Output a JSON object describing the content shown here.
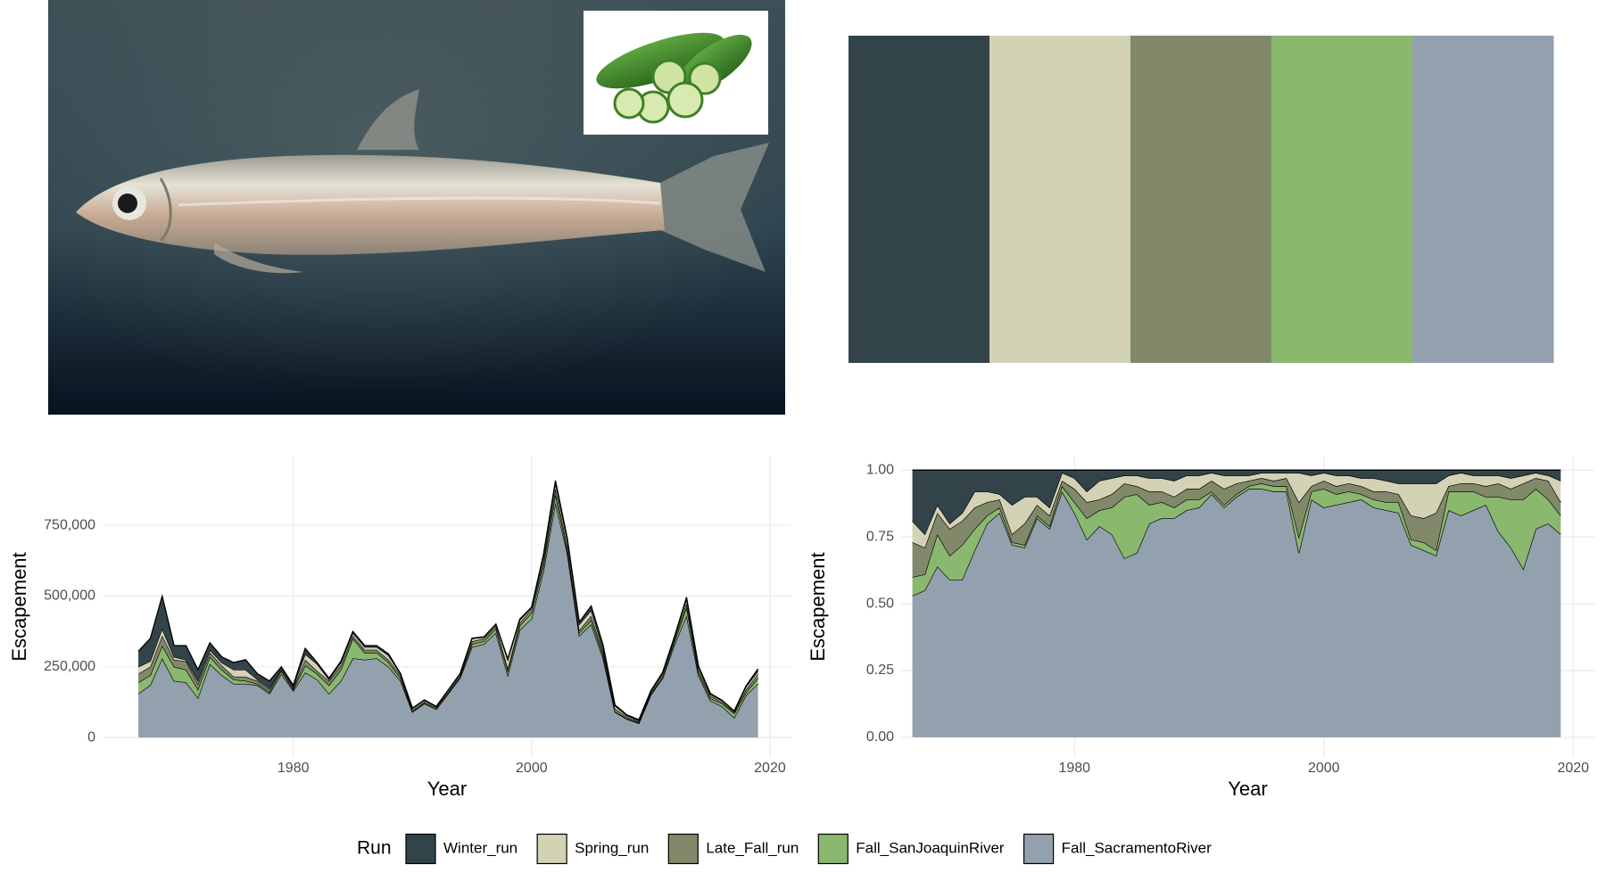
{
  "chart_data": [
    {
      "type": "area",
      "xlabel": "Year",
      "ylabel": "Escapement",
      "x": [
        1967,
        1968,
        1969,
        1970,
        1971,
        1972,
        1973,
        1974,
        1975,
        1976,
        1977,
        1978,
        1979,
        1980,
        1981,
        1982,
        1983,
        1984,
        1985,
        1986,
        1987,
        1988,
        1989,
        1990,
        1991,
        1992,
        1993,
        1994,
        1995,
        1996,
        1997,
        1998,
        1999,
        2000,
        2001,
        2002,
        2003,
        2004,
        2005,
        2006,
        2007,
        2008,
        2009,
        2010,
        2011,
        2012,
        2013,
        2014,
        2015,
        2016,
        2017,
        2018,
        2019
      ],
      "xlim": [
        1964,
        2021.8
      ],
      "xticks": [
        1980,
        2000,
        2020
      ],
      "ylim": [
        -72000,
        996000
      ],
      "yticks": [
        0,
        {
          "value": 250000,
          "label": "250,000"
        },
        {
          "value": 500000,
          "label": "500,000"
        },
        {
          "value": 750000,
          "label": "750,000"
        }
      ],
      "grid": true,
      "series": [
        {
          "name": "Winter_run",
          "color": "#33434a",
          "values": [
            55000,
            80000,
            115000,
            40000,
            50000,
            40000,
            25000,
            20000,
            25000,
            35000,
            20000,
            25000,
            5000,
            5000,
            20000,
            5000,
            5000,
            5000,
            5000,
            5000,
            5000,
            5000,
            1000,
            1000,
            1000,
            1000,
            1000,
            1000,
            1000,
            1000,
            1000,
            3000,
            3000,
            1000,
            8000,
            8000,
            8000,
            8000,
            15000,
            17000,
            3000,
            3000,
            5000,
            2000,
            1000,
            3000,
            6000,
            3000,
            3000,
            1000,
            1000,
            3000,
            8000
          ]
        },
        {
          "name": "Spring_run",
          "color": "#d3d2b4",
          "values": [
            25000,
            20000,
            25000,
            10000,
            5000,
            10000,
            10000,
            10000,
            25000,
            25000,
            5000,
            5000,
            5000,
            5000,
            20000,
            25000,
            5000,
            10000,
            10000,
            10000,
            10000,
            15000,
            5000,
            5000,
            5000,
            3000,
            5000,
            5000,
            10000,
            5000,
            5000,
            30000,
            10000,
            5000,
            15000,
            20000,
            20000,
            20000,
            20000,
            10000,
            10000,
            5000,
            3000,
            5000,
            5000,
            5000,
            15000,
            10000,
            5000,
            5000,
            3000,
            10000,
            10000
          ]
        },
        {
          "name": "Late_Fall_run",
          "color": "#82896b",
          "values": [
            30000,
            30000,
            35000,
            25000,
            30000,
            20000,
            15000,
            15000,
            10000,
            15000,
            10000,
            10000,
            5000,
            5000,
            20000,
            10000,
            15000,
            15000,
            10000,
            10000,
            10000,
            10000,
            10000,
            5000,
            5000,
            5000,
            5000,
            5000,
            10000,
            10000,
            10000,
            10000,
            10000,
            15000,
            15000,
            20000,
            15000,
            10000,
            15000,
            10000,
            10000,
            5000,
            3000,
            5000,
            10000,
            10000,
            15000,
            10000,
            10000,
            5000,
            5000,
            10000,
            15000
          ]
        },
        {
          "name": "Fall_SanJoaquinRiver",
          "color": "#8ab86f",
          "values": [
            40000,
            35000,
            45000,
            50000,
            45000,
            30000,
            25000,
            20000,
            15000,
            10000,
            5000,
            5000,
            10000,
            5000,
            25000,
            20000,
            30000,
            40000,
            70000,
            25000,
            20000,
            15000,
            10000,
            3000,
            2000,
            1000,
            2000,
            5000,
            10000,
            10000,
            15000,
            15000,
            15000,
            20000,
            20000,
            30000,
            10000,
            10000,
            15000,
            10000,
            2000,
            2000,
            2000,
            3000,
            5000,
            10000,
            30000,
            10000,
            8000,
            10000,
            15000,
            10000,
            20000
          ]
        },
        {
          "name": "Fall_SacramentoRiver",
          "color": "#93a1ae",
          "values": [
            155000,
            185000,
            280000,
            200000,
            195000,
            140000,
            260000,
            220000,
            190000,
            190000,
            185000,
            155000,
            225000,
            165000,
            230000,
            205000,
            155000,
            200000,
            280000,
            275000,
            280000,
            250000,
            200000,
            90000,
            120000,
            100000,
            155000,
            210000,
            320000,
            330000,
            370000,
            220000,
            380000,
            420000,
            590000,
            830000,
            650000,
            360000,
            400000,
            280000,
            90000,
            65000,
            50000,
            150000,
            210000,
            330000,
            430000,
            220000,
            130000,
            110000,
            70000,
            150000,
            190000
          ]
        }
      ]
    },
    {
      "type": "area",
      "xlabel": "Year",
      "ylabel": "Escapement",
      "x": [
        1967,
        1968,
        1969,
        1970,
        1971,
        1972,
        1973,
        1974,
        1975,
        1976,
        1977,
        1978,
        1979,
        1980,
        1981,
        1982,
        1983,
        1984,
        1985,
        1986,
        1987,
        1988,
        1989,
        1990,
        1991,
        1992,
        1993,
        1994,
        1995,
        1996,
        1997,
        1998,
        1999,
        2000,
        2001,
        2002,
        2003,
        2004,
        2005,
        2006,
        2007,
        2008,
        2009,
        2010,
        2011,
        2012,
        2013,
        2014,
        2015,
        2016,
        2017,
        2018,
        2019
      ],
      "xlim": [
        1966.1,
        2021.7
      ],
      "xticks": [
        1980,
        2000,
        2020
      ],
      "ylim": [
        -0.077,
        1.054
      ],
      "yticks": [
        {
          "value": 0,
          "label": "0.00"
        },
        {
          "value": 0.25,
          "label": "0.25"
        },
        {
          "value": 0.5,
          "label": "0.50"
        },
        {
          "value": 0.75,
          "label": "0.75"
        },
        {
          "value": 1,
          "label": "1.00"
        }
      ],
      "grid": true,
      "series": [
        {
          "color": "#33434a",
          "values": [
            0.19,
            0.24,
            0.13,
            0.2,
            0.16,
            0.08,
            0.08,
            0.09,
            0.13,
            0.1,
            0.1,
            0.14,
            0.01,
            0.03,
            0.08,
            0.04,
            0.03,
            0.02,
            0.02,
            0.03,
            0.03,
            0.04,
            0.02,
            0.02,
            0.01,
            0.02,
            0.02,
            0.02,
            0.01,
            0.01,
            0.01,
            0.01,
            0.02,
            0.01,
            0.02,
            0.02,
            0.03,
            0.03,
            0.04,
            0.05,
            0.05,
            0.05,
            0.05,
            0.02,
            0.01,
            0.02,
            0.02,
            0.02,
            0.03,
            0.02,
            0.01,
            0.02,
            0.04
          ]
        },
        {
          "color": "#d3d2b4",
          "values": [
            0.08,
            0.05,
            0.03,
            0.02,
            0.03,
            0.06,
            0.04,
            0.02,
            0.11,
            0.1,
            0.03,
            0.03,
            0.03,
            0.04,
            0.04,
            0.07,
            0.06,
            0.03,
            0.04,
            0.05,
            0.05,
            0.06,
            0.05,
            0.05,
            0.03,
            0.05,
            0.03,
            0.02,
            0.02,
            0.03,
            0.02,
            0.11,
            0.04,
            0.03,
            0.04,
            0.03,
            0.03,
            0.05,
            0.04,
            0.04,
            0.12,
            0.13,
            0.11,
            0.04,
            0.04,
            0.03,
            0.04,
            0.03,
            0.04,
            0.03,
            0.02,
            0.02,
            0.08
          ]
        },
        {
          "color": "#82896b",
          "values": [
            0.13,
            0.1,
            0.08,
            0.1,
            0.09,
            0.08,
            0.05,
            0.03,
            0.03,
            0.08,
            0.04,
            0.04,
            0.02,
            0.05,
            0.06,
            0.04,
            0.05,
            0.05,
            0.03,
            0.05,
            0.04,
            0.04,
            0.04,
            0.04,
            0.04,
            0.06,
            0.04,
            0.02,
            0.02,
            0.02,
            0.03,
            0.13,
            0.02,
            0.03,
            0.03,
            0.03,
            0.03,
            0.03,
            0.04,
            0.03,
            0.09,
            0.09,
            0.14,
            0.02,
            0.03,
            0.03,
            0.04,
            0.05,
            0.04,
            0.06,
            0.04,
            0.07,
            0.05
          ]
        },
        {
          "color": "#8ab86f",
          "values": [
            0.07,
            0.06,
            0.12,
            0.09,
            0.13,
            0.08,
            0.03,
            0.02,
            0.01,
            0.01,
            0.01,
            0.01,
            0.02,
            0.04,
            0.08,
            0.06,
            0.1,
            0.23,
            0.22,
            0.07,
            0.06,
            0.04,
            0.04,
            0.03,
            0.01,
            0.01,
            0.01,
            0.01,
            0.02,
            0.02,
            0.02,
            0.06,
            0.03,
            0.07,
            0.04,
            0.04,
            0.02,
            0.03,
            0.03,
            0.04,
            0.02,
            0.03,
            0.02,
            0.07,
            0.09,
            0.07,
            0.03,
            0.13,
            0.18,
            0.26,
            0.15,
            0.09,
            0.07
          ]
        },
        {
          "color": "#93a1ae",
          "values": [
            0.53,
            0.55,
            0.64,
            0.59,
            0.59,
            0.7,
            0.8,
            0.84,
            0.72,
            0.71,
            0.82,
            0.78,
            0.92,
            0.84,
            0.74,
            0.79,
            0.76,
            0.67,
            0.69,
            0.8,
            0.82,
            0.82,
            0.85,
            0.86,
            0.91,
            0.86,
            0.9,
            0.93,
            0.93,
            0.92,
            0.92,
            0.69,
            0.89,
            0.86,
            0.87,
            0.88,
            0.89,
            0.86,
            0.85,
            0.84,
            0.72,
            0.7,
            0.68,
            0.85,
            0.83,
            0.85,
            0.87,
            0.77,
            0.71,
            0.63,
            0.78,
            0.8,
            0.76
          ]
        }
      ]
    }
  ],
  "legend": {
    "title": "Run"
  }
}
